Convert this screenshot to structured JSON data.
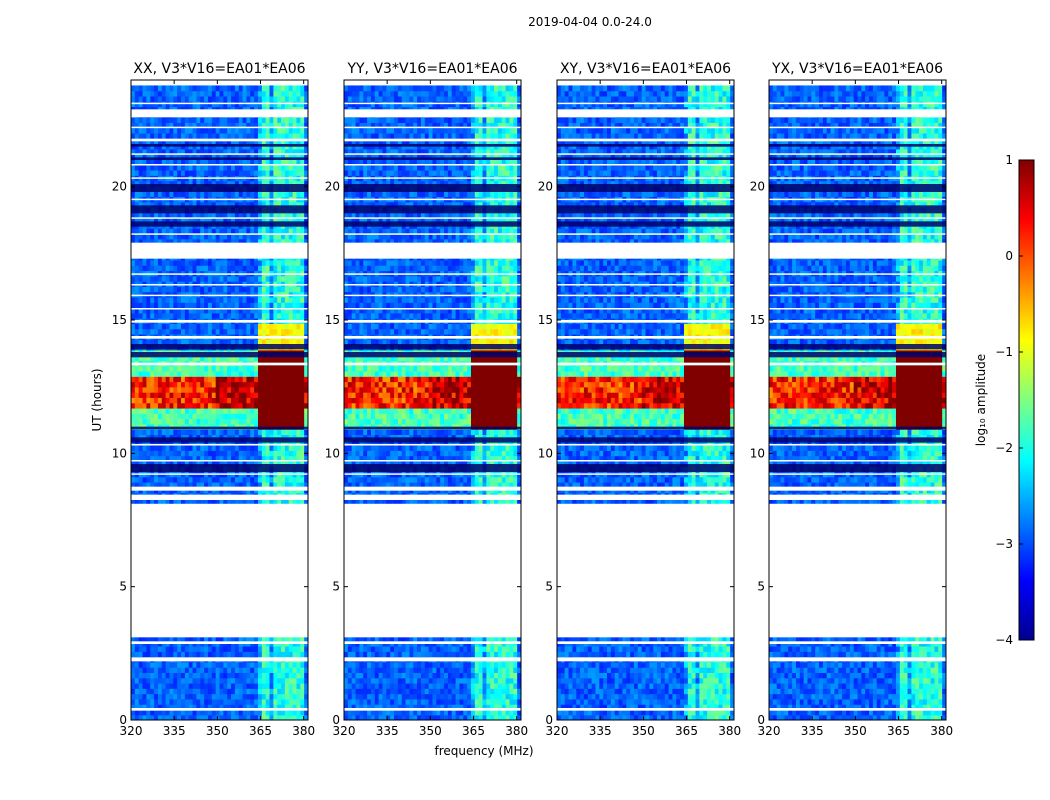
{
  "chart_data": {
    "type": "heatmap",
    "suptitle": "2019-04-04 0.0-24.0",
    "xlabel": "frequency (MHz)",
    "ylabel": "UT (hours)",
    "xlim": [
      320,
      381.5
    ],
    "ylim": [
      0,
      24
    ],
    "xticks": [
      "320",
      "335",
      "350",
      "365",
      "380"
    ],
    "xtick_values": [
      320,
      335,
      350,
      365,
      380
    ],
    "yticks": [
      "0",
      "5",
      "10",
      "15",
      "20"
    ],
    "ytick_values": [
      0,
      5,
      10,
      15,
      20
    ],
    "colormap": "jet",
    "colorbar": {
      "label": "log₁₀ amplitude",
      "range": [
        -4,
        1
      ],
      "ticks": [
        "1",
        "0",
        "−1",
        "−2",
        "−3",
        "−4"
      ],
      "tick_values": [
        1,
        0,
        -1,
        -2,
        -3,
        -4
      ]
    },
    "panels": [
      {
        "title": "XX, V3*V16=EA01*EA06",
        "rfi_band_mhz": [
          364,
          380
        ],
        "peak_amplitude_log10": 1
      },
      {
        "title": "YY, V3*V16=EA01*EA06",
        "rfi_band_mhz": [
          364,
          380
        ],
        "peak_amplitude_log10": 1
      },
      {
        "title": "XY, V3*V16=EA01*EA06",
        "rfi_band_mhz": [
          364,
          380
        ],
        "peak_amplitude_log10": 1
      },
      {
        "title": "YX, V3*V16=EA01*EA06",
        "rfi_band_mhz": [
          364,
          380
        ],
        "peak_amplitude_log10": 1
      }
    ],
    "flagged_time_ranges_hours": [
      [
        3.1,
        8.1
      ],
      [
        17.3,
        17.9
      ],
      [
        22.6,
        22.9
      ]
    ],
    "strong_rfi_time_range_hours": [
      11.0,
      13.8
    ],
    "data_time_coverage_hours": [
      0.0,
      23.8
    ]
  }
}
